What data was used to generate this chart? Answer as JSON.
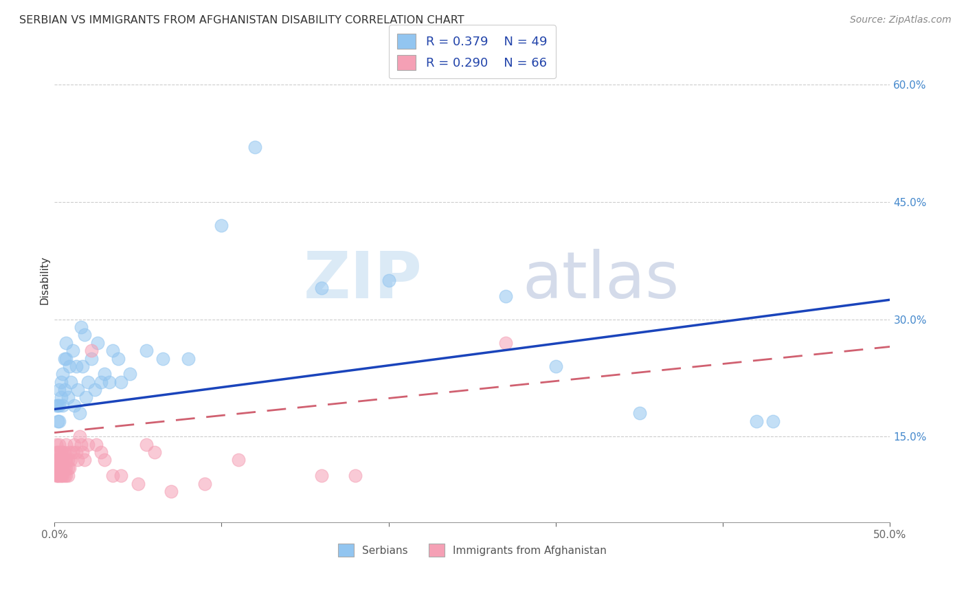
{
  "title": "SERBIAN VS IMMIGRANTS FROM AFGHANISTAN DISABILITY CORRELATION CHART",
  "source": "Source: ZipAtlas.com",
  "ylabel": "Disability",
  "xlim": [
    0.0,
    0.5
  ],
  "ylim": [
    0.04,
    0.66
  ],
  "yticks_right": [
    0.15,
    0.3,
    0.45,
    0.6
  ],
  "ytick_labels_right": [
    "15.0%",
    "30.0%",
    "45.0%",
    "60.0%"
  ],
  "grid_color": "#cccccc",
  "background_color": "#ffffff",
  "blue_color": "#92C5F0",
  "pink_color": "#F5A0B5",
  "blue_line_color": "#1A44BB",
  "pink_line_color": "#D06070",
  "legend_R1": "R = 0.379",
  "legend_N1": "N = 49",
  "legend_R2": "R = 0.290",
  "legend_N2": "N = 66",
  "legend_label1": "Serbians",
  "legend_label2": "Immigrants from Afghanistan",
  "watermark_zip": "ZIP",
  "watermark_atlas": "atlas",
  "blue_trend_x0": 0.0,
  "blue_trend_y0": 0.185,
  "blue_trend_x1": 0.5,
  "blue_trend_y1": 0.325,
  "pink_trend_x0": 0.0,
  "pink_trend_y0": 0.155,
  "pink_trend_x1": 0.5,
  "pink_trend_y1": 0.265,
  "serbian_x": [
    0.001,
    0.002,
    0.002,
    0.003,
    0.003,
    0.003,
    0.004,
    0.004,
    0.005,
    0.005,
    0.006,
    0.006,
    0.007,
    0.007,
    0.008,
    0.009,
    0.01,
    0.011,
    0.012,
    0.013,
    0.014,
    0.015,
    0.016,
    0.017,
    0.018,
    0.019,
    0.02,
    0.022,
    0.024,
    0.026,
    0.028,
    0.03,
    0.033,
    0.035,
    0.038,
    0.04,
    0.045,
    0.055,
    0.065,
    0.08,
    0.1,
    0.12,
    0.16,
    0.2,
    0.27,
    0.3,
    0.35,
    0.42,
    0.43
  ],
  "serbian_y": [
    0.19,
    0.17,
    0.19,
    0.17,
    0.21,
    0.19,
    0.2,
    0.22,
    0.19,
    0.23,
    0.21,
    0.25,
    0.25,
    0.27,
    0.2,
    0.24,
    0.22,
    0.26,
    0.19,
    0.24,
    0.21,
    0.18,
    0.29,
    0.24,
    0.28,
    0.2,
    0.22,
    0.25,
    0.21,
    0.27,
    0.22,
    0.23,
    0.22,
    0.26,
    0.25,
    0.22,
    0.23,
    0.26,
    0.25,
    0.25,
    0.42,
    0.52,
    0.34,
    0.35,
    0.33,
    0.24,
    0.18,
    0.17,
    0.17
  ],
  "afghan_x": [
    0.001,
    0.001,
    0.001,
    0.001,
    0.001,
    0.002,
    0.002,
    0.002,
    0.002,
    0.002,
    0.002,
    0.003,
    0.003,
    0.003,
    0.003,
    0.003,
    0.003,
    0.004,
    0.004,
    0.004,
    0.004,
    0.004,
    0.004,
    0.005,
    0.005,
    0.005,
    0.005,
    0.005,
    0.006,
    0.006,
    0.006,
    0.006,
    0.007,
    0.007,
    0.007,
    0.007,
    0.008,
    0.008,
    0.008,
    0.009,
    0.009,
    0.01,
    0.011,
    0.012,
    0.013,
    0.014,
    0.015,
    0.016,
    0.017,
    0.018,
    0.02,
    0.022,
    0.025,
    0.028,
    0.03,
    0.035,
    0.04,
    0.05,
    0.055,
    0.06,
    0.07,
    0.09,
    0.11,
    0.16,
    0.18,
    0.27
  ],
  "afghan_y": [
    0.13,
    0.12,
    0.11,
    0.1,
    0.14,
    0.11,
    0.1,
    0.12,
    0.13,
    0.11,
    0.1,
    0.11,
    0.12,
    0.1,
    0.13,
    0.14,
    0.12,
    0.1,
    0.11,
    0.12,
    0.13,
    0.11,
    0.1,
    0.11,
    0.12,
    0.1,
    0.13,
    0.11,
    0.11,
    0.12,
    0.13,
    0.1,
    0.11,
    0.12,
    0.1,
    0.14,
    0.11,
    0.1,
    0.12,
    0.11,
    0.13,
    0.12,
    0.13,
    0.14,
    0.13,
    0.12,
    0.15,
    0.14,
    0.13,
    0.12,
    0.14,
    0.26,
    0.14,
    0.13,
    0.12,
    0.1,
    0.1,
    0.09,
    0.14,
    0.13,
    0.08,
    0.09,
    0.12,
    0.1,
    0.1,
    0.27
  ]
}
